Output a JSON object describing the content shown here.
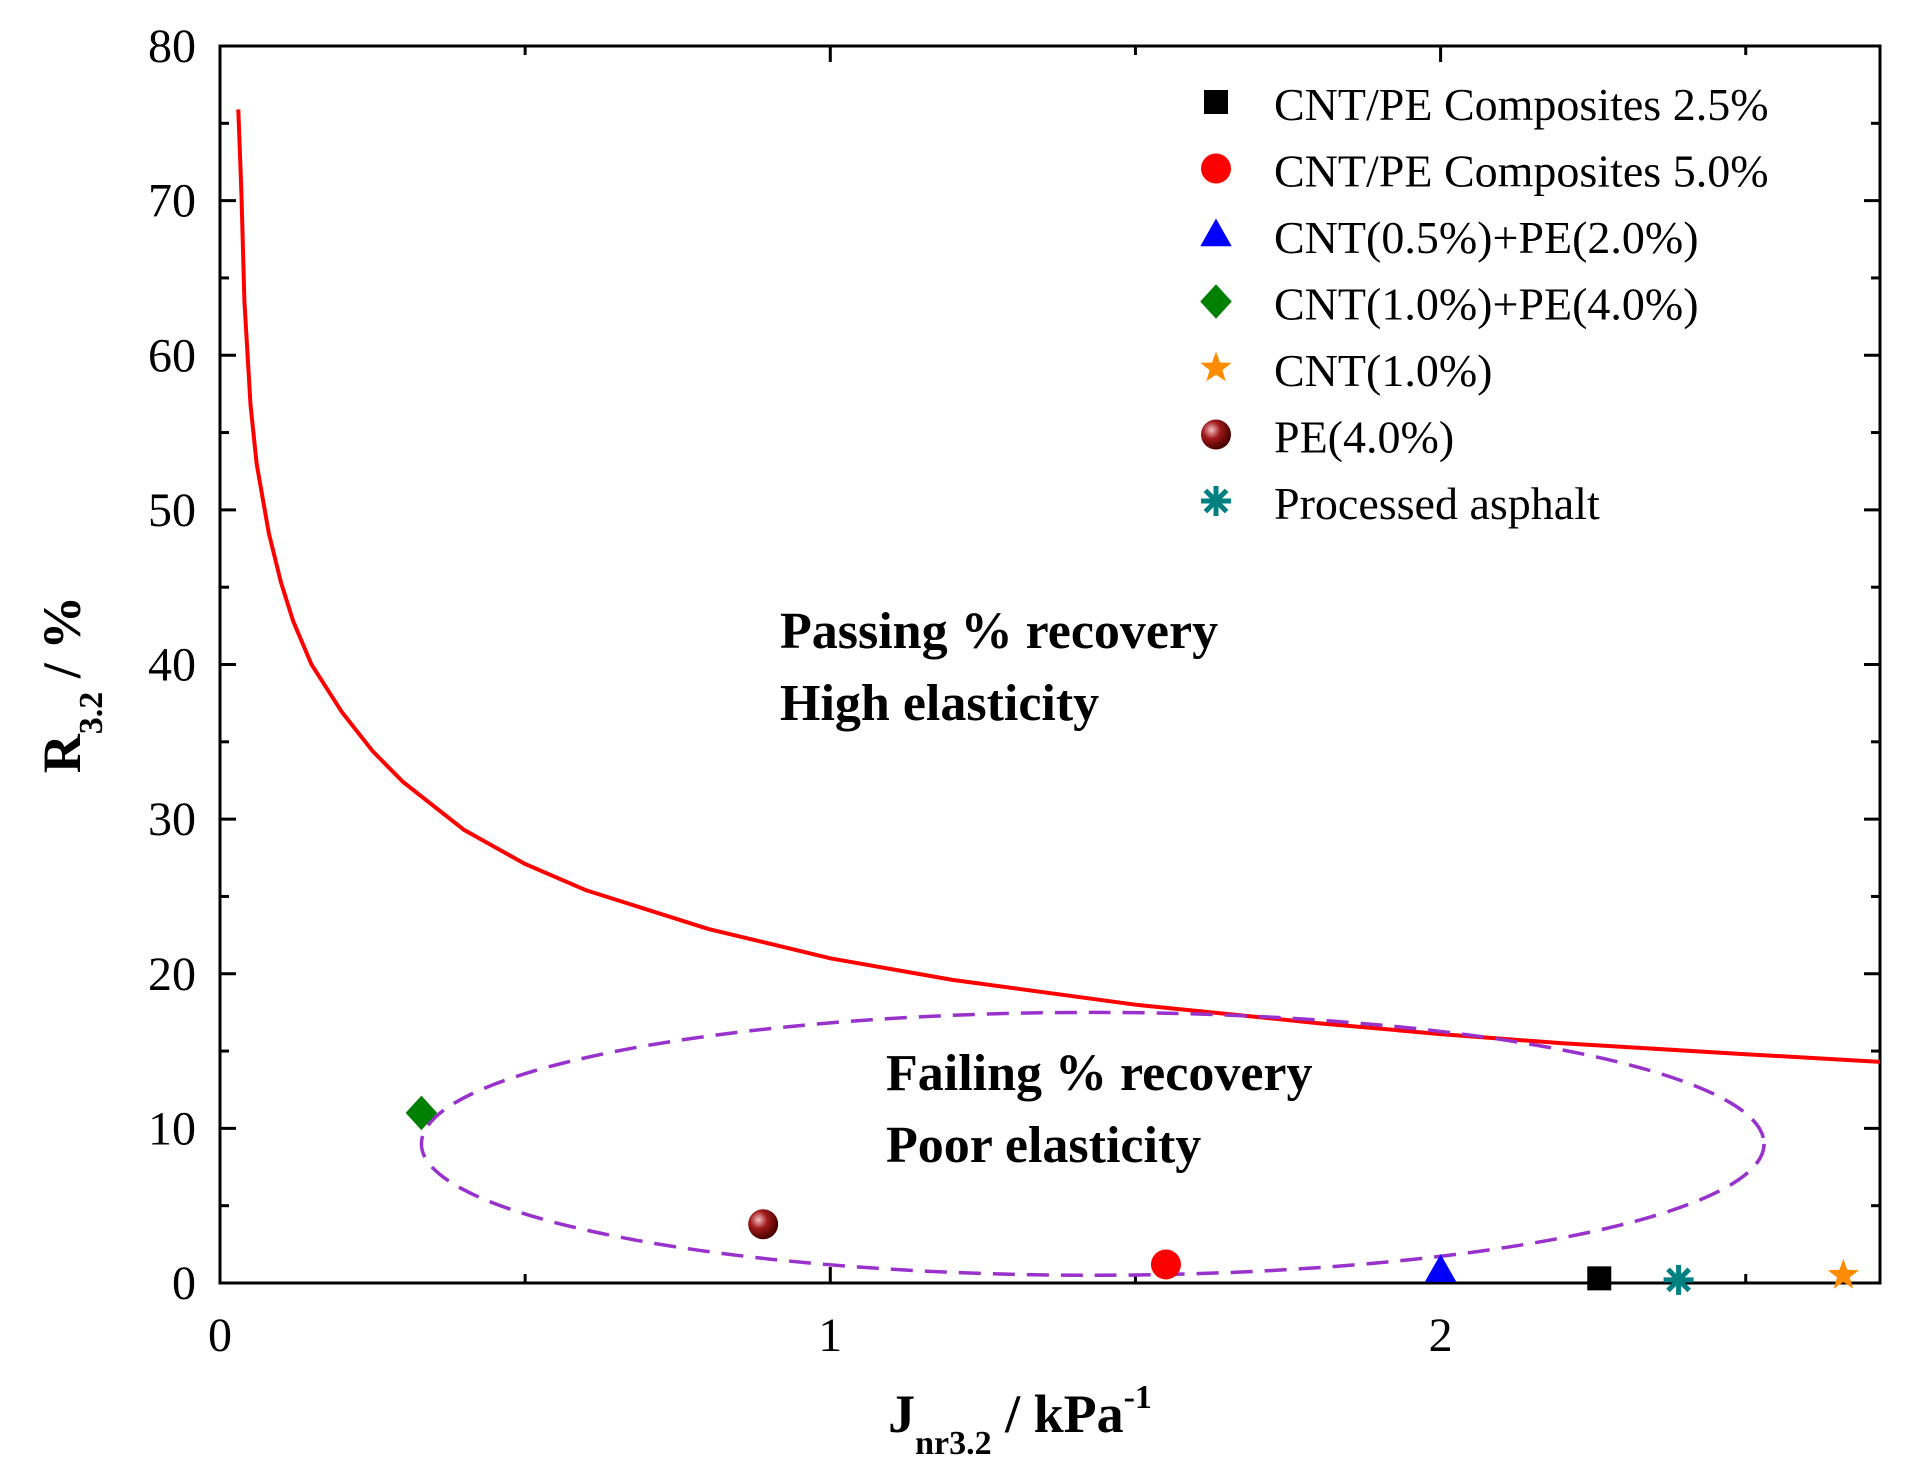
{
  "chart_data": {
    "type": "scatter",
    "xlabel": {
      "main": "J",
      "sub": "nr3.2",
      "rest": " / kPa",
      "sup": "-1"
    },
    "ylabel": {
      "main": "R",
      "sub": "3.2",
      "rest": " / %"
    },
    "xlim": [
      0,
      2.72
    ],
    "ylim": [
      0,
      80
    ],
    "x_ticks": [
      "0",
      "1",
      "2"
    ],
    "x_tick_values": [
      0,
      1,
      2
    ],
    "x_minor_step": 0.5,
    "y_ticks": [
      "0",
      "10",
      "20",
      "30",
      "40",
      "50",
      "60",
      "70",
      "80"
    ],
    "y_tick_values": [
      0,
      10,
      20,
      30,
      40,
      50,
      60,
      70,
      80
    ],
    "y_minor_step": 5,
    "grid": false,
    "legend_position": "top-right",
    "series": [
      {
        "name": "CNT/PE Composites 2.5%",
        "marker": "square",
        "color": "#000000",
        "x": 2.26,
        "y": 0.3
      },
      {
        "name": "CNT/PE Composites 5.0%",
        "marker": "circle",
        "color": "#ff0000",
        "x": 1.55,
        "y": 1.2
      },
      {
        "name": "CNT(0.5%)+PE(2.0%)",
        "marker": "triangle",
        "color": "#0000ff",
        "x": 2.0,
        "y": 0.8
      },
      {
        "name": "CNT(1.0%)+PE(4.0%)",
        "marker": "diamond",
        "color": "#008000",
        "x": 0.33,
        "y": 11.0
      },
      {
        "name": "CNT(1.0%)",
        "marker": "star",
        "color": "#ff8c00",
        "x": 2.66,
        "y": 0.5
      },
      {
        "name": "PE(4.0%)",
        "marker": "sphere",
        "color": "#8b0000",
        "x": 0.89,
        "y": 3.8
      },
      {
        "name": "Processed asphalt",
        "marker": "asterisk",
        "color": "#008080",
        "x": 2.39,
        "y": 0.2
      }
    ],
    "curve": {
      "color": "#ff0000",
      "x": [
        0.03,
        0.04,
        0.05,
        0.06,
        0.08,
        0.1,
        0.12,
        0.15,
        0.2,
        0.25,
        0.3,
        0.4,
        0.5,
        0.6,
        0.8,
        1.0,
        1.2,
        1.5,
        1.8,
        2.0,
        2.2,
        2.5,
        2.72
      ],
      "y": [
        75.9,
        68.4,
        63.2,
        59.3,
        53.6,
        49.5,
        46.4,
        42.9,
        38.6,
        35.6,
        33.4,
        30.1,
        27.8,
        26.1,
        23.5,
        21.7,
        20.3,
        18.7,
        17.5,
        16.8,
        16.2,
        15.4,
        14.9
      ]
    },
    "curve_display": {
      "x": [
        0.03,
        0.035,
        0.04,
        0.05,
        0.06,
        0.08,
        0.1,
        0.12,
        0.15,
        0.2,
        0.25,
        0.3,
        0.4,
        0.5,
        0.6,
        0.8,
        1.0,
        1.2,
        1.5,
        1.8,
        2.0,
        2.2,
        2.5,
        2.72
      ],
      "y": [
        75.9,
        70.5,
        63.5,
        56.8,
        53.0,
        48.5,
        45.3,
        42.8,
        40.0,
        36.9,
        34.4,
        32.4,
        29.3,
        27.1,
        25.4,
        22.9,
        21.0,
        19.6,
        18.0,
        16.8,
        16.1,
        15.5,
        14.8,
        14.3
      ]
    },
    "annotations": [
      {
        "lines": [
          "Passing % recovery",
          "High elasticity"
        ]
      },
      {
        "lines": [
          "Failing % recovery",
          "Poor elasticity"
        ]
      }
    ],
    "ellipse": {
      "color": "#9932cc",
      "style": "dashed",
      "cx": 1.43,
      "cy": 9.0,
      "rx": 1.1,
      "ry": 8.5
    }
  }
}
